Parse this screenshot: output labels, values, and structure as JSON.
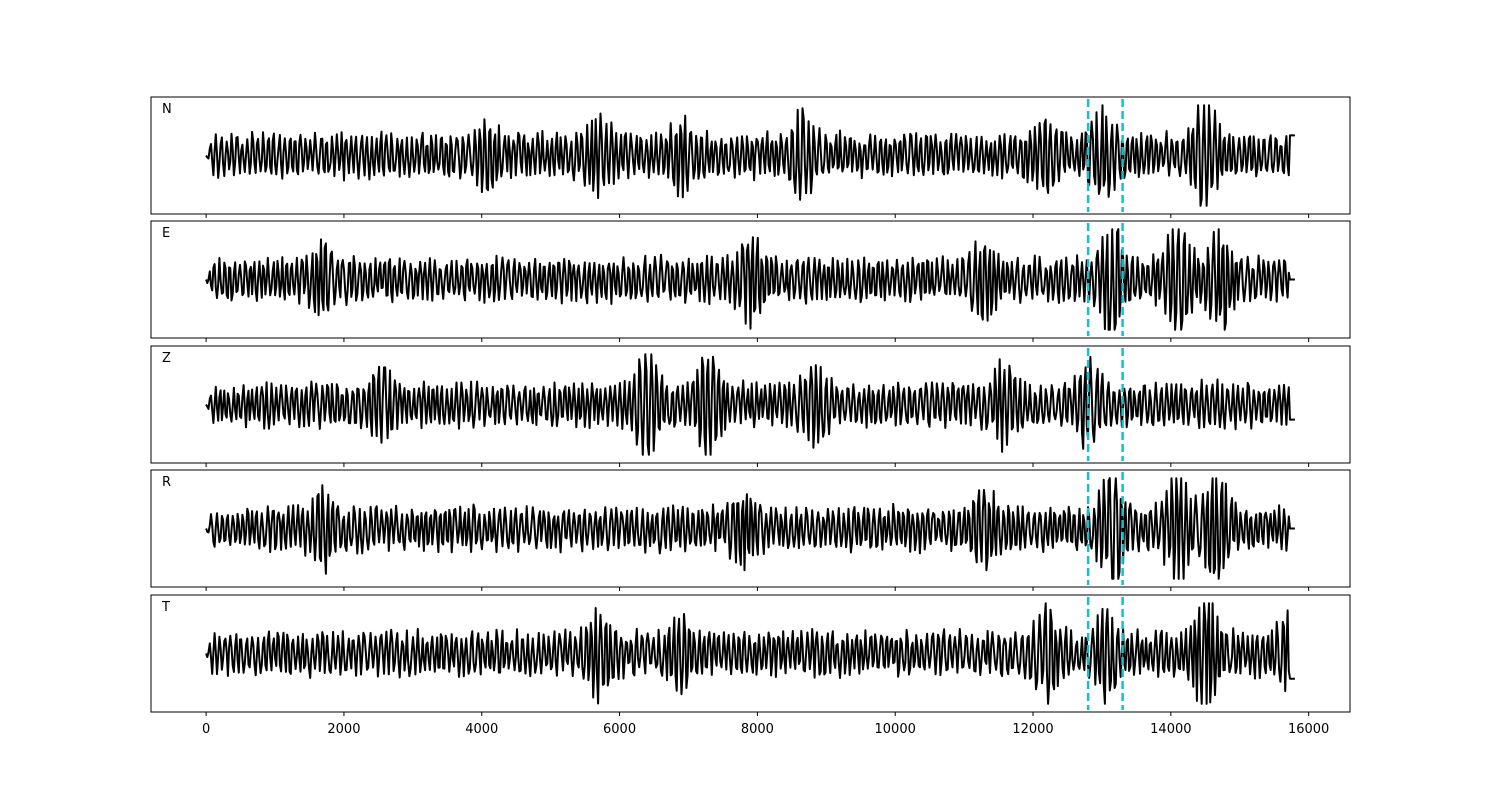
{
  "chart_data": {
    "type": "line",
    "layout": "five vertically stacked panels sharing one x axis",
    "xlim": [
      -800,
      16600
    ],
    "x_tick_labels": [
      "0",
      "2000",
      "4000",
      "6000",
      "8000",
      "10000",
      "12000",
      "14000",
      "16000"
    ],
    "x_ticks": [
      0,
      2000,
      4000,
      6000,
      8000,
      10000,
      12000,
      14000,
      16000
    ],
    "samples": 15800,
    "y_ticks_shown": false,
    "grid": false,
    "line_color": "#000000",
    "marker_color": "#17becf",
    "markers": [
      {
        "x": 12800,
        "style": "dashed"
      },
      {
        "x": 13300,
        "style": "dashed"
      }
    ],
    "panels": [
      {
        "label": "N",
        "seed": 11,
        "start_value": 0.0,
        "end_value": 0.4,
        "bursts": [
          {
            "x": 4100,
            "amp": 0.35
          },
          {
            "x": 5700,
            "amp": 0.5
          },
          {
            "x": 6900,
            "amp": 0.45
          },
          {
            "x": 8650,
            "amp": 0.5
          },
          {
            "x": 12150,
            "amp": 0.45
          },
          {
            "x": 13000,
            "amp": 0.55
          },
          {
            "x": 14500,
            "amp": 0.9
          }
        ]
      },
      {
        "label": "E",
        "seed": 23,
        "start_value": 0.0,
        "end_value": 0.0,
        "bursts": [
          {
            "x": 1700,
            "amp": 0.45
          },
          {
            "x": 7900,
            "amp": 0.5
          },
          {
            "x": 11300,
            "amp": 0.5
          },
          {
            "x": 13150,
            "amp": 0.95
          },
          {
            "x": 14100,
            "amp": 0.85
          },
          {
            "x": 14700,
            "amp": 0.8
          }
        ]
      },
      {
        "label": "Z",
        "seed": 37,
        "start_value": 0.0,
        "end_value": -0.3,
        "bursts": [
          {
            "x": 2550,
            "amp": 0.45
          },
          {
            "x": 6400,
            "amp": 0.9
          },
          {
            "x": 7300,
            "amp": 0.7
          },
          {
            "x": 8850,
            "amp": 0.5
          },
          {
            "x": 11600,
            "amp": 0.6
          },
          {
            "x": 12800,
            "amp": 0.5
          }
        ]
      },
      {
        "label": "R",
        "seed": 53,
        "start_value": 0.0,
        "end_value": 0.0,
        "bursts": [
          {
            "x": 1700,
            "amp": 0.45
          },
          {
            "x": 7800,
            "amp": 0.45
          },
          {
            "x": 11300,
            "amp": 0.5
          },
          {
            "x": 13150,
            "amp": 0.85
          },
          {
            "x": 14100,
            "amp": 0.9
          },
          {
            "x": 14650,
            "amp": 0.85
          }
        ]
      },
      {
        "label": "T",
        "seed": 71,
        "start_value": 0.0,
        "end_value": -0.5,
        "bursts": [
          {
            "x": 5700,
            "amp": 0.5
          },
          {
            "x": 6900,
            "amp": 0.45
          },
          {
            "x": 12200,
            "amp": 0.6
          },
          {
            "x": 13050,
            "amp": 0.6
          },
          {
            "x": 14500,
            "amp": 0.95
          },
          {
            "x": 15700,
            "amp": 0.4
          }
        ]
      }
    ]
  }
}
